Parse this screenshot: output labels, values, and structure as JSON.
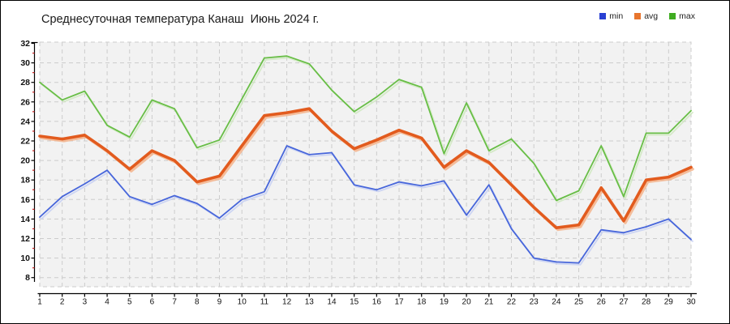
{
  "title": "Среднесуточная температура Канаш  Июнь 2024 г.",
  "legend": [
    {
      "label": "min",
      "color": "#2940d3"
    },
    {
      "label": "avg",
      "color": "#e8752d"
    },
    {
      "label": "max",
      "color": "#3fac21"
    }
  ],
  "colors": {
    "plot_bg": "#f2f2f2",
    "grid": "#cccccc",
    "axis": "#000000",
    "minor_tick": "#cc2222",
    "tick_label": "#111111",
    "min_line": "#4766db",
    "min_shadow": "#c3cdf3",
    "avg_line": "#e25b1e",
    "avg_shadow": "#f4af85",
    "max_line": "#68be46",
    "max_shadow": "#cde7bd"
  },
  "chart_data": {
    "type": "line",
    "title": "Среднесуточная температура Канаш  Июнь 2024 г.",
    "xlabel": "",
    "ylabel": "",
    "x": [
      1,
      2,
      3,
      4,
      5,
      6,
      7,
      8,
      9,
      10,
      11,
      12,
      13,
      14,
      15,
      16,
      17,
      18,
      19,
      20,
      21,
      22,
      23,
      24,
      25,
      26,
      27,
      28,
      29,
      30
    ],
    "ylim": [
      8,
      32
    ],
    "y_major_ticks": [
      32,
      30,
      28,
      26,
      24,
      22,
      20,
      18,
      16,
      14,
      12,
      10,
      8
    ],
    "y_minor_ticks": [
      31,
      29,
      27,
      25,
      23,
      21,
      19,
      17,
      15,
      13,
      11,
      9
    ],
    "grid": true,
    "legend_position": "top-right",
    "series": [
      {
        "name": "min",
        "values": [
          14.2,
          16.3,
          17.6,
          19.0,
          16.3,
          15.5,
          16.4,
          15.6,
          14.1,
          16.0,
          16.8,
          21.5,
          20.6,
          20.8,
          17.5,
          17.0,
          17.8,
          17.4,
          17.9,
          14.4,
          17.5,
          13.0,
          10.0,
          9.6,
          9.5,
          12.9,
          12.6,
          13.2,
          14.0,
          11.9
        ]
      },
      {
        "name": "avg",
        "values": [
          22.5,
          22.2,
          22.6,
          21.0,
          19.1,
          21.0,
          20.0,
          17.8,
          18.4,
          21.5,
          24.6,
          24.9,
          25.3,
          23.0,
          21.2,
          22.1,
          23.1,
          22.3,
          19.3,
          21.0,
          19.8,
          17.5,
          15.2,
          13.1,
          13.4,
          17.2,
          13.8,
          18.0,
          18.3,
          19.3
        ]
      },
      {
        "name": "max",
        "values": [
          28.0,
          26.2,
          27.1,
          23.6,
          22.4,
          26.2,
          25.3,
          21.3,
          22.1,
          26.3,
          30.5,
          30.7,
          29.9,
          27.2,
          25.0,
          26.5,
          28.3,
          27.5,
          20.7,
          25.9,
          21.0,
          22.2,
          19.7,
          15.9,
          16.9,
          21.5,
          16.3,
          22.8,
          22.8,
          25.1
        ]
      }
    ]
  }
}
